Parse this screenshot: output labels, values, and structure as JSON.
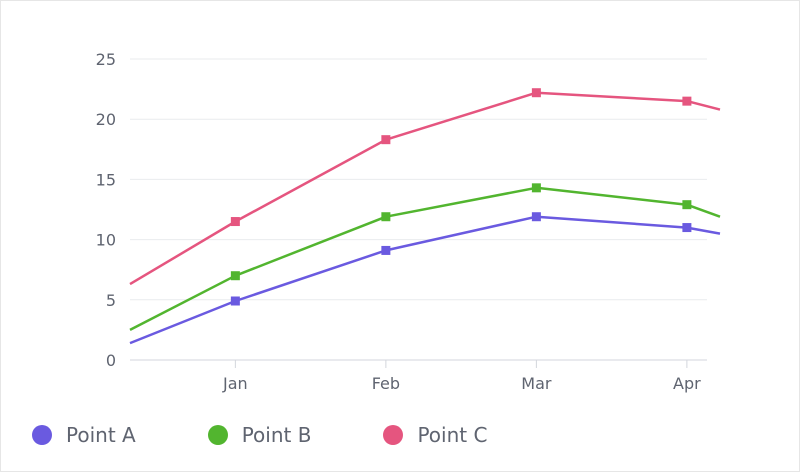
{
  "chart_data": {
    "type": "line",
    "categories": [
      "Jan",
      "Feb",
      "Mar",
      "Apr"
    ],
    "x": [
      0.3,
      1,
      2,
      3,
      4,
      4.22
    ],
    "x_ticks": [
      1,
      2,
      3,
      4
    ],
    "xlim": [
      0.3,
      4.22
    ],
    "yticks": [
      0,
      5,
      10,
      15,
      20,
      25
    ],
    "ylim": [
      0,
      25
    ],
    "grid": true,
    "legend_position": "bottom-left",
    "series": [
      {
        "name": "Point A",
        "color": "#6a5ae0",
        "values": [
          1.4,
          4.9,
          9.1,
          11.9,
          11.0,
          10.5
        ]
      },
      {
        "name": "Point B",
        "color": "#52b52f",
        "values": [
          2.5,
          7.0,
          11.9,
          14.3,
          12.9,
          11.9
        ]
      },
      {
        "name": "Point C",
        "color": "#e5557f",
        "values": [
          6.3,
          11.5,
          18.3,
          22.2,
          21.5,
          20.8
        ]
      }
    ]
  }
}
